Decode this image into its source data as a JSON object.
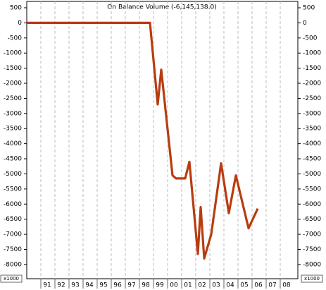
{
  "chart_data": {
    "type": "line",
    "title": "On Balance Volume (-6,145,138.0)",
    "multiplier": "x1000",
    "x": [
      1990,
      1998.75,
      1999.3,
      1999.55,
      2000.35,
      2000.6,
      2001.25,
      2001.55,
      2002.15,
      2002.35,
      2002.6,
      2003.1,
      2003.8,
      2004.35,
      2004.85,
      2005.75,
      2006.4
    ],
    "series": [
      {
        "color": "#b83c10",
        "values": [
          0,
          0,
          -2700,
          -1550,
          -5050,
          -5150,
          -5150,
          -4600,
          -7650,
          -6100,
          -7800,
          -7000,
          -4650,
          -6300,
          -5050,
          -6800,
          -6150
        ]
      }
    ],
    "xlim": [
      1990,
      2009.25
    ],
    "xticks": [
      {
        "value": 1991,
        "label": "91"
      },
      {
        "value": 1992,
        "label": "92"
      },
      {
        "value": 1993,
        "label": "93"
      },
      {
        "value": 1994,
        "label": "94"
      },
      {
        "value": 1995,
        "label": "95"
      },
      {
        "value": 1996,
        "label": "96"
      },
      {
        "value": 1997,
        "label": "97"
      },
      {
        "value": 1998,
        "label": "98"
      },
      {
        "value": 1999,
        "label": "99"
      },
      {
        "value": 2000,
        "label": "00"
      },
      {
        "value": 2001,
        "label": "01"
      },
      {
        "value": 2002,
        "label": "02"
      },
      {
        "value": 2003,
        "label": "03"
      },
      {
        "value": 2004,
        "label": "04"
      },
      {
        "value": 2005,
        "label": "05"
      },
      {
        "value": 2006,
        "label": "06"
      },
      {
        "value": 2007,
        "label": "07"
      },
      {
        "value": 2008,
        "label": "08"
      }
    ],
    "ylim": [
      -8470,
      710
    ],
    "yticks": [
      500,
      0,
      -500,
      -1000,
      -1500,
      -2000,
      -2500,
      -3000,
      -3500,
      -4000,
      -4500,
      -5000,
      -5500,
      -6000,
      -6500,
      -7000,
      -7500,
      -8000
    ],
    "y2lim": [
      -8470,
      710
    ],
    "y2ticks": [
      500,
      0,
      -500,
      -1000,
      -1500,
      -2000,
      -2500,
      -3000,
      -3500,
      -4000,
      -4500,
      -5000,
      -5500,
      -6000,
      -6500,
      -7000,
      -7500,
      -8000
    ],
    "grid": true
  }
}
